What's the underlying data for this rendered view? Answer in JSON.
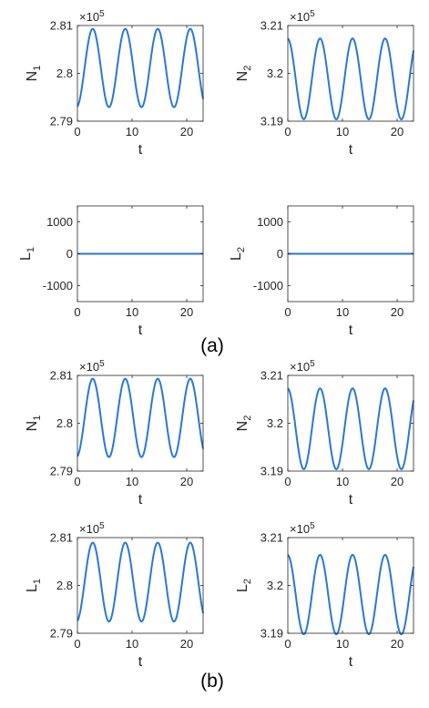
{
  "colors": {
    "line": "#2878d8",
    "axes": "#262626",
    "background": "#ffffff"
  },
  "panel_labels": [
    "(a)",
    "(b)"
  ],
  "chart_data": [
    {
      "type": "line",
      "panel": "(a)",
      "position": "top-left",
      "xlabel": "t",
      "ylabel": "N",
      "ylabel_sub": "1",
      "y_exponent": "5",
      "xlim": [
        0,
        23
      ],
      "xticks": [
        0,
        10,
        20
      ],
      "ylim": [
        2.79,
        2.81
      ],
      "yticks": [
        2.79,
        2.8,
        2.81
      ],
      "ytick_labels": [
        "2.79",
        "2.8",
        "2.81"
      ],
      "series": [
        {
          "type": "sinusoid",
          "mean": 2.80112,
          "amplitude": 0.00819,
          "period": 5.95,
          "first_peak_t": 2.8,
          "t_range": [
            0,
            23
          ]
        }
      ]
    },
    {
      "type": "line",
      "panel": "(a)",
      "position": "top-right",
      "xlabel": "t",
      "ylabel": "N",
      "ylabel_sub": "2",
      "y_exponent": "5",
      "xlim": [
        0,
        23
      ],
      "xticks": [
        0,
        10,
        20
      ],
      "ylim": [
        3.19,
        3.21
      ],
      "yticks": [
        3.19,
        3.2,
        3.21
      ],
      "ytick_labels": [
        "3.19",
        "3.2",
        "3.21"
      ],
      "series": [
        {
          "type": "sinusoid",
          "mean": 3.19884,
          "amplitude": 0.00845,
          "period": 5.95,
          "first_peak_t": 5.9,
          "t_range": [
            0,
            23
          ]
        }
      ]
    },
    {
      "type": "line",
      "panel": "(a)",
      "position": "middle-left",
      "xlabel": "t",
      "ylabel": "L",
      "ylabel_sub": "1",
      "y_exponent": "",
      "xlim": [
        0,
        23
      ],
      "xticks": [
        0,
        10,
        20
      ],
      "ylim": [
        -1500,
        1500
      ],
      "yticks": [
        -1000,
        0,
        1000
      ],
      "ytick_labels": [
        "-1000",
        "0",
        "1000"
      ],
      "series": [
        {
          "type": "constant",
          "value": 0,
          "t_range": [
            0,
            23
          ]
        }
      ]
    },
    {
      "type": "line",
      "panel": "(a)",
      "position": "middle-right",
      "xlabel": "t",
      "ylabel": "L",
      "ylabel_sub": "2",
      "y_exponent": "",
      "xlim": [
        0,
        23
      ],
      "xticks": [
        0,
        10,
        20
      ],
      "ylim": [
        -1500,
        1500
      ],
      "yticks": [
        -1000,
        0,
        1000
      ],
      "ytick_labels": [
        "-1000",
        "0",
        "1000"
      ],
      "series": [
        {
          "type": "constant",
          "value": 0,
          "t_range": [
            0,
            23
          ]
        }
      ]
    },
    {
      "type": "line",
      "panel": "(b)",
      "position": "top-left",
      "xlabel": "t",
      "ylabel": "N",
      "ylabel_sub": "1",
      "y_exponent": "5",
      "xlim": [
        0,
        23
      ],
      "xticks": [
        0,
        10,
        20
      ],
      "ylim": [
        2.79,
        2.81
      ],
      "yticks": [
        2.79,
        2.8,
        2.81
      ],
      "ytick_labels": [
        "2.79",
        "2.8",
        "2.81"
      ],
      "series": [
        {
          "type": "sinusoid",
          "mean": 2.80112,
          "amplitude": 0.00819,
          "period": 5.95,
          "first_peak_t": 2.8,
          "t_range": [
            0,
            23
          ]
        }
      ]
    },
    {
      "type": "line",
      "panel": "(b)",
      "position": "top-right",
      "xlabel": "t",
      "ylabel": "N",
      "ylabel_sub": "2",
      "y_exponent": "5",
      "xlim": [
        0,
        23
      ],
      "xticks": [
        0,
        10,
        20
      ],
      "ylim": [
        3.19,
        3.21
      ],
      "yticks": [
        3.19,
        3.2,
        3.21
      ],
      "ytick_labels": [
        "3.19",
        "3.2",
        "3.21"
      ],
      "series": [
        {
          "type": "sinusoid",
          "mean": 3.19884,
          "amplitude": 0.00845,
          "period": 5.95,
          "first_peak_t": 5.9,
          "t_range": [
            0,
            23
          ]
        }
      ]
    },
    {
      "type": "line",
      "panel": "(b)",
      "position": "bottom-left",
      "xlabel": "t",
      "ylabel": "L",
      "ylabel_sub": "1",
      "y_exponent": "5",
      "xlim": [
        0,
        23
      ],
      "xticks": [
        0,
        10,
        20
      ],
      "ylim": [
        2.79,
        2.81
      ],
      "yticks": [
        2.79,
        2.8,
        2.81
      ],
      "ytick_labels": [
        "2.79",
        "2.8",
        "2.81"
      ],
      "series": [
        {
          "type": "sinusoid",
          "mean": 2.8007,
          "amplitude": 0.00825,
          "period": 5.95,
          "first_peak_t": 2.8,
          "t_range": [
            0,
            23
          ]
        }
      ]
    },
    {
      "type": "line",
      "panel": "(b)",
      "position": "bottom-right",
      "xlabel": "t",
      "ylabel": "L",
      "ylabel_sub": "2",
      "y_exponent": "5",
      "xlim": [
        0,
        23
      ],
      "xticks": [
        0,
        10,
        20
      ],
      "ylim": [
        3.19,
        3.21
      ],
      "yticks": [
        3.19,
        3.2,
        3.21
      ],
      "ytick_labels": [
        "3.19",
        "3.2",
        "3.21"
      ],
      "series": [
        {
          "type": "sinusoid",
          "mean": 3.1981,
          "amplitude": 0.0083,
          "period": 5.95,
          "first_peak_t": 5.9,
          "t_range": [
            0,
            23
          ]
        }
      ]
    }
  ]
}
